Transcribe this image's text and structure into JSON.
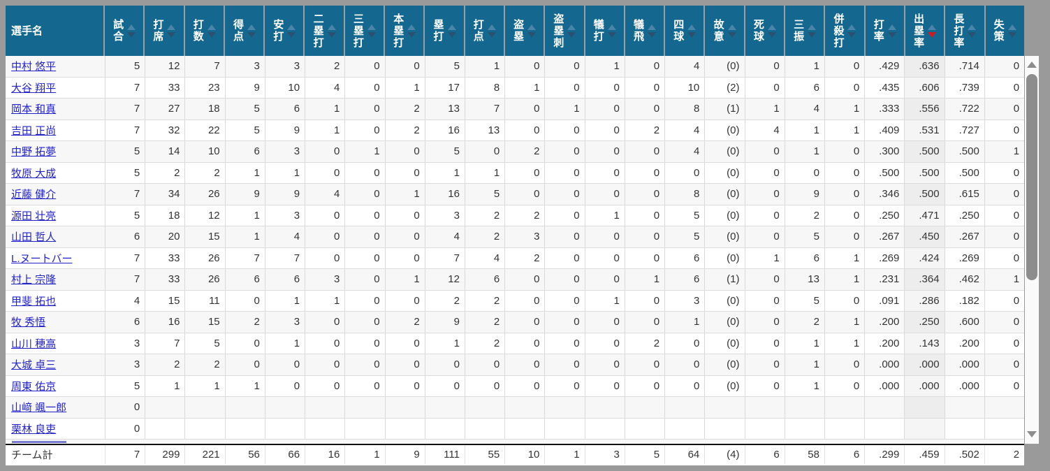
{
  "table": {
    "name_header": "選手名",
    "sorted_column_index": 20,
    "sort_direction": "desc",
    "columns": [
      {
        "label": "試合",
        "sort": "none"
      },
      {
        "label": "打席",
        "sort": "none"
      },
      {
        "label": "打数",
        "sort": "none"
      },
      {
        "label": "得点",
        "sort": "none"
      },
      {
        "label": "安打",
        "sort": "none"
      },
      {
        "label": "二塁打",
        "sort": "none"
      },
      {
        "label": "三塁打",
        "sort": "none"
      },
      {
        "label": "本塁打",
        "sort": "none"
      },
      {
        "label": "塁打",
        "sort": "none"
      },
      {
        "label": "打点",
        "sort": "none"
      },
      {
        "label": "盗塁",
        "sort": "none"
      },
      {
        "label": "盗塁刺",
        "sort": "none"
      },
      {
        "label": "犠打",
        "sort": "none"
      },
      {
        "label": "犠飛",
        "sort": "none"
      },
      {
        "label": "四球",
        "sort": "none"
      },
      {
        "label": "故意",
        "sort": "none"
      },
      {
        "label": "死球",
        "sort": "none"
      },
      {
        "label": "三振",
        "sort": "none"
      },
      {
        "label": "併殺打",
        "sort": "none"
      },
      {
        "label": "打率",
        "sort": "none"
      },
      {
        "label": "出塁率",
        "sort": "desc"
      },
      {
        "label": "長打率",
        "sort": "none"
      },
      {
        "label": "失策",
        "sort": "none"
      }
    ],
    "rows": [
      {
        "name": "中村 悠平",
        "values": [
          "5",
          "12",
          "7",
          "3",
          "3",
          "2",
          "0",
          "0",
          "5",
          "1",
          "0",
          "0",
          "1",
          "0",
          "4",
          "(0)",
          "0",
          "1",
          "0",
          ".429",
          ".636",
          ".714",
          "0"
        ]
      },
      {
        "name": "大谷 翔平",
        "values": [
          "7",
          "33",
          "23",
          "9",
          "10",
          "4",
          "0",
          "1",
          "17",
          "8",
          "1",
          "0",
          "0",
          "0",
          "10",
          "(2)",
          "0",
          "6",
          "0",
          ".435",
          ".606",
          ".739",
          "0"
        ]
      },
      {
        "name": "岡本 和真",
        "values": [
          "7",
          "27",
          "18",
          "5",
          "6",
          "1",
          "0",
          "2",
          "13",
          "7",
          "0",
          "1",
          "0",
          "0",
          "8",
          "(1)",
          "1",
          "4",
          "1",
          ".333",
          ".556",
          ".722",
          "0"
        ]
      },
      {
        "name": "吉田 正尚",
        "values": [
          "7",
          "32",
          "22",
          "5",
          "9",
          "1",
          "0",
          "2",
          "16",
          "13",
          "0",
          "0",
          "0",
          "2",
          "4",
          "(0)",
          "4",
          "1",
          "1",
          ".409",
          ".531",
          ".727",
          "0"
        ]
      },
      {
        "name": "中野 拓夢",
        "values": [
          "5",
          "14",
          "10",
          "6",
          "3",
          "0",
          "1",
          "0",
          "5",
          "0",
          "2",
          "0",
          "0",
          "0",
          "4",
          "(0)",
          "0",
          "1",
          "0",
          ".300",
          ".500",
          ".500",
          "1"
        ]
      },
      {
        "name": "牧原 大成",
        "values": [
          "5",
          "2",
          "2",
          "1",
          "1",
          "0",
          "0",
          "0",
          "1",
          "1",
          "0",
          "0",
          "0",
          "0",
          "0",
          "(0)",
          "0",
          "0",
          "0",
          ".500",
          ".500",
          ".500",
          "0"
        ]
      },
      {
        "name": "近藤 健介",
        "values": [
          "7",
          "34",
          "26",
          "9",
          "9",
          "4",
          "0",
          "1",
          "16",
          "5",
          "0",
          "0",
          "0",
          "0",
          "8",
          "(0)",
          "0",
          "9",
          "0",
          ".346",
          ".500",
          ".615",
          "0"
        ]
      },
      {
        "name": "源田 壮亮",
        "values": [
          "5",
          "18",
          "12",
          "1",
          "3",
          "0",
          "0",
          "0",
          "3",
          "2",
          "2",
          "0",
          "1",
          "0",
          "5",
          "(0)",
          "0",
          "2",
          "0",
          ".250",
          ".471",
          ".250",
          "0"
        ]
      },
      {
        "name": "山田 哲人",
        "values": [
          "6",
          "20",
          "15",
          "1",
          "4",
          "0",
          "0",
          "0",
          "4",
          "2",
          "3",
          "0",
          "0",
          "0",
          "5",
          "(0)",
          "0",
          "5",
          "0",
          ".267",
          ".450",
          ".267",
          "0"
        ]
      },
      {
        "name": "L.ヌートバー",
        "values": [
          "7",
          "33",
          "26",
          "7",
          "7",
          "0",
          "0",
          "0",
          "7",
          "4",
          "2",
          "0",
          "0",
          "0",
          "6",
          "(0)",
          "1",
          "6",
          "1",
          ".269",
          ".424",
          ".269",
          "0"
        ]
      },
      {
        "name": "村上 宗隆",
        "values": [
          "7",
          "33",
          "26",
          "6",
          "6",
          "3",
          "0",
          "1",
          "12",
          "6",
          "0",
          "0",
          "0",
          "1",
          "6",
          "(1)",
          "0",
          "13",
          "1",
          ".231",
          ".364",
          ".462",
          "1"
        ]
      },
      {
        "name": "甲斐 拓也",
        "values": [
          "4",
          "15",
          "11",
          "0",
          "1",
          "1",
          "0",
          "0",
          "2",
          "2",
          "0",
          "0",
          "1",
          "0",
          "3",
          "(0)",
          "0",
          "5",
          "0",
          ".091",
          ".286",
          ".182",
          "0"
        ]
      },
      {
        "name": "牧 秀悟",
        "values": [
          "6",
          "16",
          "15",
          "2",
          "3",
          "0",
          "0",
          "2",
          "9",
          "2",
          "0",
          "0",
          "0",
          "0",
          "1",
          "(0)",
          "0",
          "2",
          "1",
          ".200",
          ".250",
          ".600",
          "0"
        ]
      },
      {
        "name": "山川 穂高",
        "values": [
          "3",
          "7",
          "5",
          "0",
          "1",
          "0",
          "0",
          "0",
          "1",
          "2",
          "0",
          "0",
          "0",
          "2",
          "0",
          "(0)",
          "0",
          "1",
          "1",
          ".200",
          ".143",
          ".200",
          "0"
        ]
      },
      {
        "name": "大城 卓三",
        "values": [
          "3",
          "2",
          "2",
          "0",
          "0",
          "0",
          "0",
          "0",
          "0",
          "0",
          "0",
          "0",
          "0",
          "0",
          "0",
          "(0)",
          "0",
          "1",
          "0",
          ".000",
          ".000",
          ".000",
          "0"
        ]
      },
      {
        "name": "周東 佑京",
        "values": [
          "5",
          "1",
          "1",
          "1",
          "0",
          "0",
          "0",
          "0",
          "0",
          "0",
          "0",
          "0",
          "0",
          "0",
          "0",
          "(0)",
          "0",
          "1",
          "0",
          ".000",
          ".000",
          ".000",
          "0"
        ]
      },
      {
        "name": "山﨑 颯一郎",
        "values": [
          "0"
        ]
      },
      {
        "name": "栗林 良吏",
        "values": [
          "0"
        ]
      }
    ],
    "footer": {
      "label": "チーム計",
      "values": [
        "7",
        "299",
        "221",
        "56",
        "66",
        "16",
        "1",
        "9",
        "111",
        "55",
        "10",
        "1",
        "3",
        "5",
        "64",
        "(4)",
        "6",
        "58",
        "6",
        ".299",
        ".459",
        ".502",
        "2"
      ]
    }
  },
  "icons": {
    "sort_asc": "triangle-up",
    "sort_desc": "triangle-down",
    "scroll_up": "triangle-up",
    "scroll_down": "triangle-down"
  },
  "colors": {
    "header_bg": "#14688F",
    "header_text": "#FFFFFF",
    "sort_arrow_up": "#4A84A8",
    "sort_arrow_down": "#2B5170",
    "sort_arrow_active": "#D01A23",
    "link": "#2323CC",
    "row_stripe": "#F7F7F7",
    "frame": "#9A9A9A",
    "footer_divider": "#111111"
  }
}
